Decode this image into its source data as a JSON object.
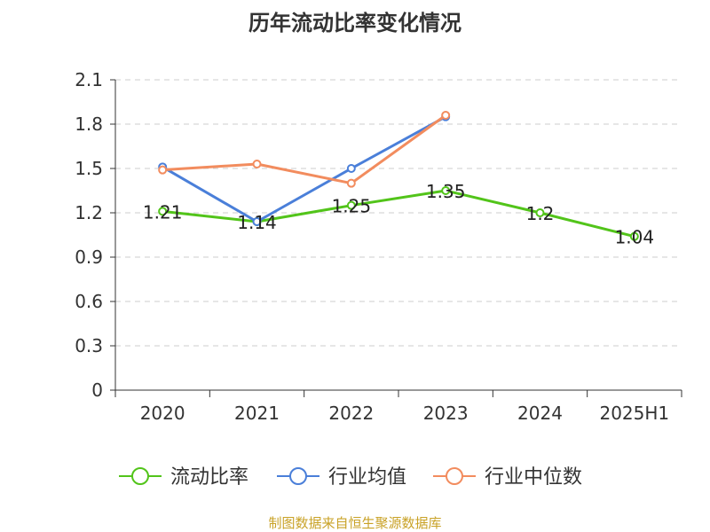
{
  "chart_data": {
    "type": "line",
    "title": "历年流动比率变化情况",
    "categories": [
      "2020",
      "2021",
      "2022",
      "2023",
      "2024",
      "2025H1"
    ],
    "yticks": [
      "0",
      "0.3",
      "0.6",
      "0.9",
      "1.2",
      "1.5",
      "1.8",
      "2.1"
    ],
    "ylim": [
      0,
      2.1
    ],
    "grid": true,
    "legend_position": "bottom",
    "series": [
      {
        "name": "流动比率",
        "color": "#52c41a",
        "values": [
          1.21,
          1.14,
          1.25,
          1.35,
          1.2,
          1.04
        ],
        "labels": [
          "1.21",
          "1.14",
          "1.25",
          "1.35",
          "1.2",
          "1.04"
        ]
      },
      {
        "name": "行业均值",
        "color": "#4a7fd9",
        "values": [
          1.51,
          1.14,
          1.5,
          1.85,
          null,
          null
        ]
      },
      {
        "name": "行业中位数",
        "color": "#f28c5e",
        "values": [
          1.49,
          1.53,
          1.4,
          1.86,
          null,
          null
        ]
      }
    ]
  },
  "source": "制图数据来自恒生聚源数据库"
}
